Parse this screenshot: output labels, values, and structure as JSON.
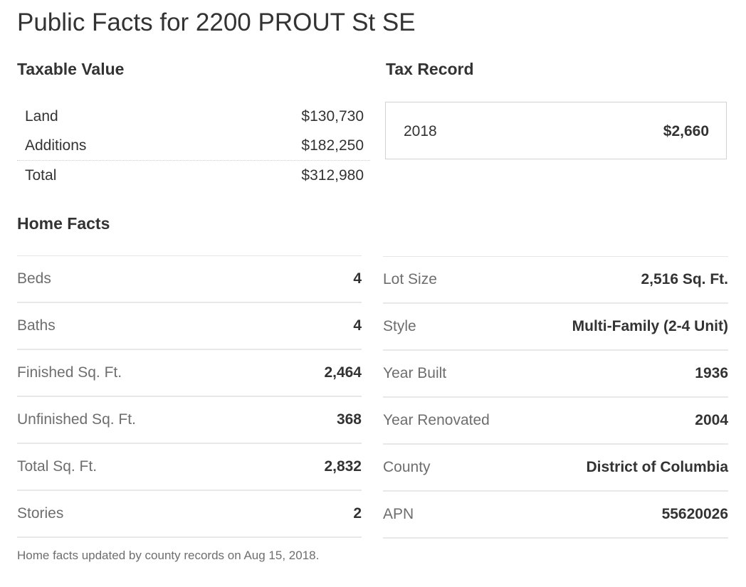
{
  "page": {
    "title": "Public Facts for 2200 PROUT St SE"
  },
  "taxable_value": {
    "heading": "Taxable Value",
    "rows": [
      {
        "label": "Land",
        "value": "$130,730"
      },
      {
        "label": "Additions",
        "value": "$182,250"
      },
      {
        "label": "Total",
        "value": "$312,980"
      }
    ]
  },
  "tax_record": {
    "heading": "Tax Record",
    "year": "2018",
    "amount": "$2,660"
  },
  "home_facts": {
    "heading": "Home Facts",
    "left": [
      {
        "label": "Beds",
        "value": "4"
      },
      {
        "label": "Baths",
        "value": "4"
      },
      {
        "label": "Finished Sq. Ft.",
        "value": "2,464"
      },
      {
        "label": "Unfinished Sq. Ft.",
        "value": "368"
      },
      {
        "label": "Total Sq. Ft.",
        "value": "2,832"
      },
      {
        "label": "Stories",
        "value": "2"
      }
    ],
    "right": [
      {
        "label": "Lot Size",
        "value": "2,516 Sq. Ft."
      },
      {
        "label": "Style",
        "value": "Multi-Family (2-4 Unit)"
      },
      {
        "label": "Year Built",
        "value": "1936"
      },
      {
        "label": "Year Renovated",
        "value": "2004"
      },
      {
        "label": "County",
        "value": "District of Columbia"
      },
      {
        "label": "APN",
        "value": "55620026"
      }
    ],
    "footnote": "Home facts updated by county records on Aug 15, 2018."
  },
  "colors": {
    "text_primary": "#333333",
    "text_muted": "#6e6e6e",
    "divider": "#e8e8e8",
    "box_border": "#d2d2d2"
  }
}
